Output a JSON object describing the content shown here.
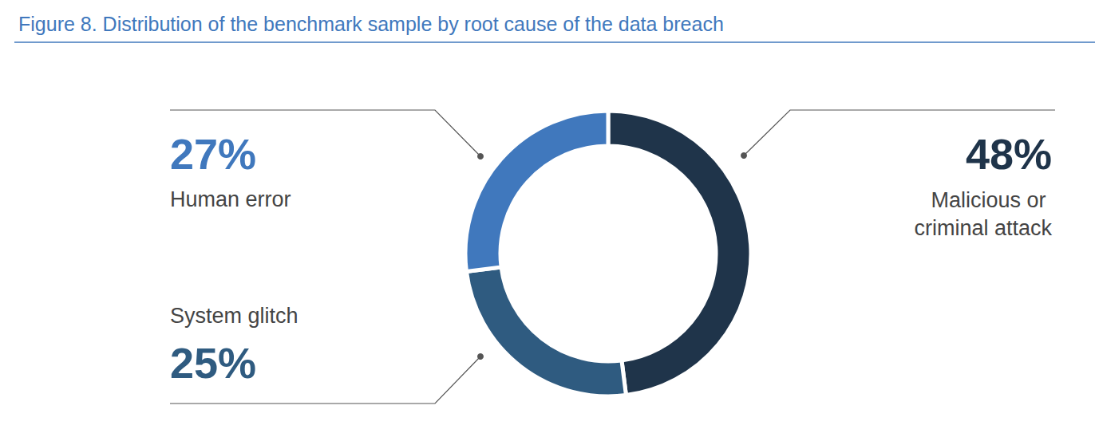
{
  "chart_data": {
    "type": "pie",
    "title": "Figure 8. Distribution of the benchmark sample by root cause of the data breach",
    "categories": [
      "Malicious or criminal attack",
      "System glitch",
      "Human error"
    ],
    "values": [
      48,
      25,
      27
    ],
    "value_labels": [
      "48%",
      "25%",
      "27%"
    ],
    "colors": [
      "#1f344a",
      "#2f5b80",
      "#4078bd"
    ],
    "data_labels": true
  }
}
